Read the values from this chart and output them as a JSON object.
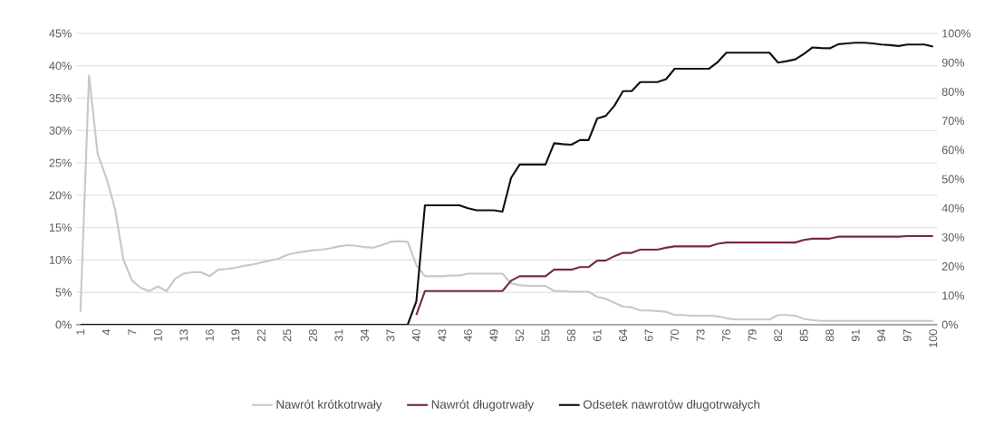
{
  "chart_data": {
    "type": "line",
    "categories": [
      "1",
      null,
      null,
      "4",
      null,
      null,
      "7",
      null,
      null,
      "10",
      null,
      null,
      "13",
      null,
      null,
      "16",
      null,
      null,
      "19",
      null,
      null,
      "22",
      null,
      null,
      "25",
      null,
      null,
      "28",
      null,
      null,
      "31",
      null,
      null,
      "34",
      null,
      null,
      "37",
      null,
      null,
      "40",
      null,
      null,
      "43",
      null,
      null,
      "46",
      null,
      null,
      "49",
      null,
      null,
      "52",
      null,
      null,
      "55",
      null,
      null,
      "58",
      null,
      null,
      "61",
      null,
      null,
      "64",
      null,
      null,
      "67",
      null,
      null,
      "70",
      null,
      null,
      "73",
      null,
      null,
      "76",
      null,
      null,
      "79",
      null,
      null,
      "82",
      null,
      null,
      "85",
      null,
      null,
      "88",
      null,
      null,
      "91",
      null,
      null,
      "94",
      null,
      null,
      "97",
      null,
      null,
      "100"
    ],
    "series": [
      {
        "name": "Nawrót krótkotrwały",
        "color": "#c8c8c8",
        "values": [
          2,
          38.5,
          26.4,
          22.7,
          18,
          10,
          6.8,
          5.7,
          5.2,
          5.9,
          5.2,
          7.1,
          7.9,
          8.1,
          8.1,
          7.5,
          8.5,
          8.6,
          8.8,
          9.1,
          9.3,
          9.6,
          9.9,
          10.2,
          10.8,
          11.1,
          11.3,
          11.5,
          11.6,
          11.8,
          12.1,
          12.3,
          12.2,
          12.0,
          11.9,
          12.3,
          12.8,
          12.9,
          12.8,
          9.2,
          7.5,
          7.5,
          7.5,
          7.6,
          7.6,
          7.9,
          7.9,
          7.9,
          7.9,
          7.9,
          6.4,
          6.1,
          6.0,
          6.0,
          6.0,
          5.2,
          5.2,
          5.1,
          5.1,
          5.1,
          4.3,
          4.0,
          3.4,
          2.8,
          2.7,
          2.2,
          2.2,
          2.1,
          2.0,
          1.5,
          1.5,
          1.4,
          1.4,
          1.4,
          1.3,
          1.0,
          0.8,
          0.8,
          0.8,
          0.8,
          0.8,
          1.5,
          1.5,
          1.4,
          0.9,
          0.7,
          0.6,
          0.6,
          0.6,
          0.6,
          0.6,
          0.6,
          0.6,
          0.6,
          0.6,
          0.6,
          0.6,
          0.6,
          0.6,
          0.6
        ]
      },
      {
        "name": "Nawrót długotrwały",
        "color": "#7a2a3a",
        "values": [
          null,
          null,
          null,
          null,
          null,
          null,
          null,
          null,
          null,
          null,
          null,
          null,
          null,
          null,
          null,
          null,
          null,
          null,
          null,
          null,
          null,
          null,
          null,
          null,
          null,
          null,
          null,
          null,
          null,
          null,
          null,
          null,
          null,
          null,
          null,
          null,
          null,
          null,
          null,
          1.5,
          5.2,
          5.2,
          5.2,
          5.2,
          5.2,
          5.2,
          5.2,
          5.2,
          5.2,
          5.2,
          6.8,
          7.5,
          7.5,
          7.5,
          7.5,
          8.5,
          8.5,
          8.5,
          8.9,
          8.9,
          9.9,
          9.9,
          10.6,
          11.1,
          11.1,
          11.6,
          11.6,
          11.6,
          11.9,
          12.1,
          12.1,
          12.1,
          12.1,
          12.1,
          12.5,
          12.7,
          12.7,
          12.7,
          12.7,
          12.7,
          12.7,
          12.7,
          12.7,
          12.7,
          13.1,
          13.3,
          13.3,
          13.3,
          13.6,
          13.6,
          13.6,
          13.6,
          13.6,
          13.6,
          13.6,
          13.6,
          13.7,
          13.7,
          13.7,
          13.7
        ]
      },
      {
        "name": "Odsetek nawrotów długotrwałych",
        "color": "#111111",
        "axis": "y2",
        "values": [
          0,
          0,
          0,
          0,
          0,
          0,
          0,
          0,
          0,
          0,
          0,
          0,
          0,
          0,
          0,
          0,
          0,
          0,
          0,
          0,
          0,
          0,
          0,
          0,
          0,
          0,
          0,
          0,
          0,
          0,
          0,
          0,
          0,
          0,
          0,
          0,
          0,
          0,
          0,
          8,
          41,
          41,
          41,
          41,
          41,
          40,
          39.3,
          39.3,
          39.3,
          38.8,
          50.4,
          55,
          55,
          55,
          55,
          62.3,
          62,
          61.8,
          63.4,
          63.4,
          70.8,
          71.7,
          75.2,
          80.2,
          80.2,
          83.3,
          83.3,
          83.3,
          84.3,
          87.9,
          87.9,
          87.9,
          87.9,
          87.9,
          90.2,
          93.4,
          93.4,
          93.4,
          93.4,
          93.4,
          93.4,
          90,
          90.5,
          91.1,
          93,
          95.2,
          95,
          94.9,
          96.3,
          96.6,
          96.8,
          96.8,
          96.6,
          96.2,
          96,
          95.7,
          96.2,
          96.2,
          96.2,
          95.5
        ]
      }
    ],
    "ylim": [
      0,
      45
    ],
    "yticks": [
      {
        "value": 0,
        "label": "0%"
      },
      {
        "value": 5,
        "label": "5%"
      },
      {
        "value": 10,
        "label": "10%"
      },
      {
        "value": 15,
        "label": "15%"
      },
      {
        "value": 20,
        "label": "20%"
      },
      {
        "value": 25,
        "label": "25%"
      },
      {
        "value": 30,
        "label": "30%"
      },
      {
        "value": 35,
        "label": "35%"
      },
      {
        "value": 40,
        "label": "40%"
      },
      {
        "value": 45,
        "label": "45%"
      }
    ],
    "y2lim": [
      0,
      100
    ],
    "y2ticks": [
      {
        "value": 0,
        "label": "0%"
      },
      {
        "value": 10,
        "label": "10%"
      },
      {
        "value": 20,
        "label": "20%"
      },
      {
        "value": 30,
        "label": "30%"
      },
      {
        "value": 40,
        "label": "40%"
      },
      {
        "value": 50,
        "label": "50%"
      },
      {
        "value": 60,
        "label": "60%"
      },
      {
        "value": 70,
        "label": "70%"
      },
      {
        "value": 80,
        "label": "80%"
      },
      {
        "value": 90,
        "label": "90%"
      },
      {
        "value": 100,
        "label": "100%"
      }
    ],
    "grid": "y",
    "legend": "bottom"
  }
}
